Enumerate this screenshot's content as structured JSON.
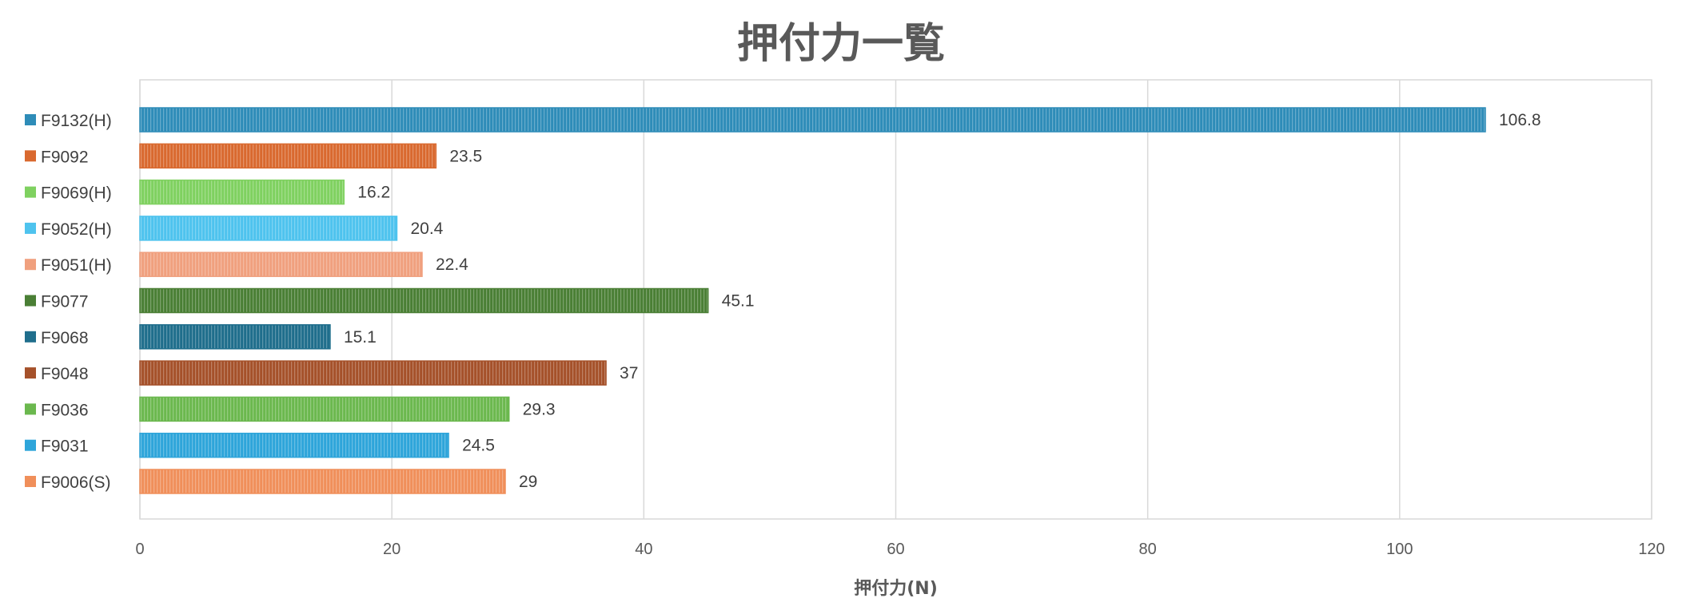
{
  "chart_data": {
    "type": "bar",
    "orientation": "horizontal",
    "title": "押付力一覧",
    "xlabel": "押付力(N)",
    "ylabel": "",
    "xlim": [
      0,
      120
    ],
    "xticks": [
      0,
      20,
      40,
      60,
      80,
      100,
      120
    ],
    "grid": true,
    "categories": [
      "F9132(H)",
      "F9092",
      "F9069(H)",
      "F9052(H)",
      "F9051(H)",
      "F9077",
      "F9068",
      "F9048",
      "F9036",
      "F9031",
      "F9006(S)"
    ],
    "values": [
      106.8,
      23.5,
      16.2,
      20.4,
      22.4,
      45.1,
      15.1,
      37,
      29.3,
      24.5,
      29
    ],
    "data_labels": [
      "106.8",
      "23.5",
      "16.2",
      "20.4",
      "22.4",
      "45.1",
      "15.1",
      "37",
      "29.3",
      "24.5",
      "29"
    ],
    "colors": [
      "#2E8CB8",
      "#D9692F",
      "#7FD160",
      "#4EC3EE",
      "#F0A07E",
      "#4A7F35",
      "#1F6E8C",
      "#A5512A",
      "#6BB84E",
      "#2EA5DA",
      "#F08F5A"
    ]
  }
}
